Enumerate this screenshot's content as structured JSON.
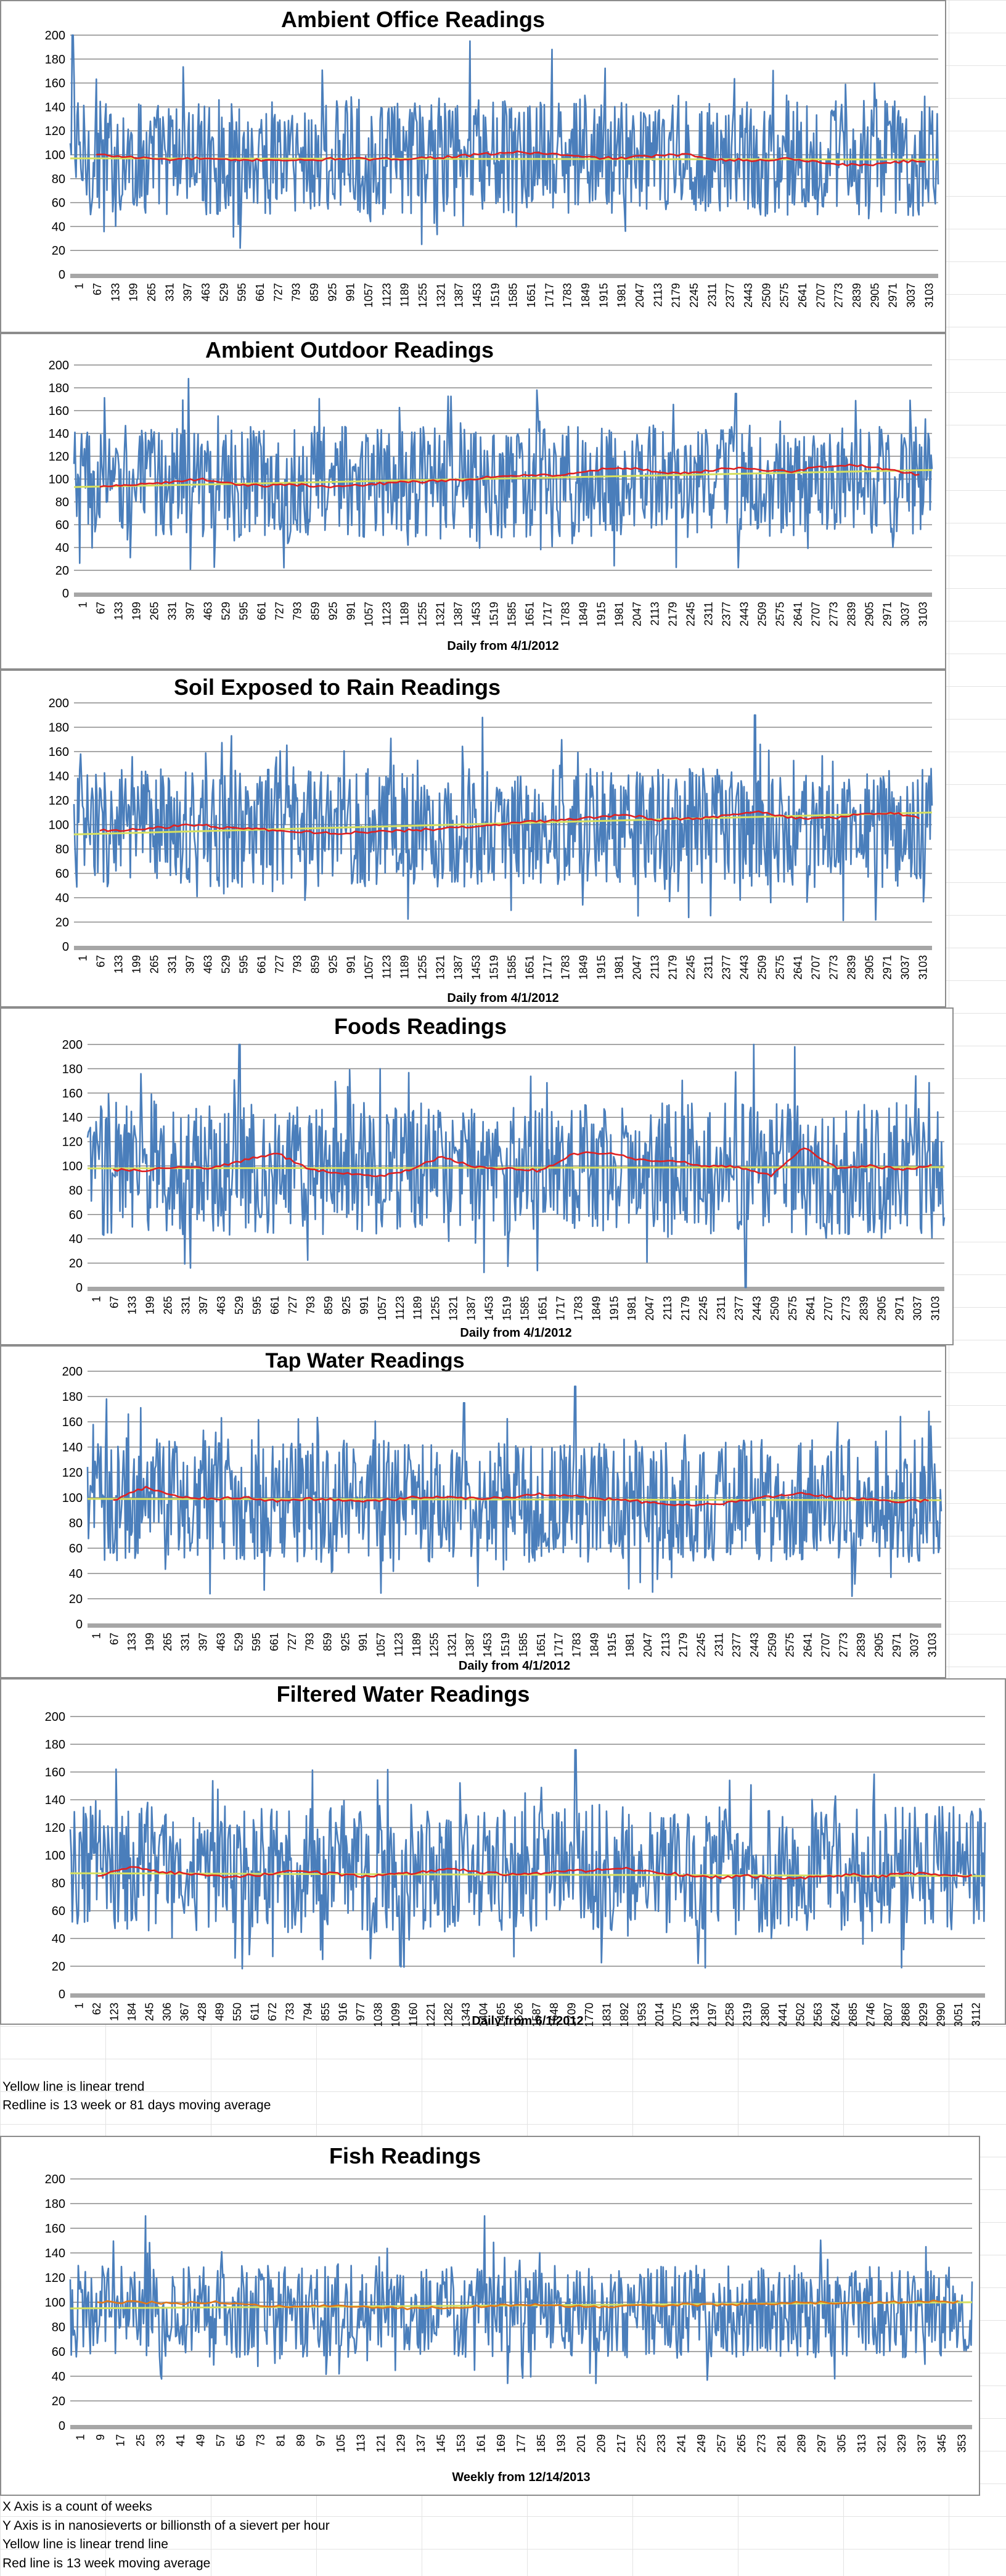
{
  "chart_data": [
    {
      "type": "line",
      "title": "Ambient Office Readings",
      "xlabel": "",
      "ylabel": "",
      "ylim": [
        0,
        200
      ],
      "yticks": [
        0,
        20,
        40,
        60,
        80,
        100,
        120,
        140,
        160,
        180,
        200
      ],
      "xticks": [
        "1",
        "67",
        "133",
        "199",
        "265",
        "331",
        "397",
        "463",
        "529",
        "595",
        "661",
        "727",
        "793",
        "859",
        "925",
        "991",
        "1057",
        "1123",
        "1189",
        "1255",
        "1321",
        "1387",
        "1453",
        "1519",
        "1585",
        "1651",
        "1717",
        "1783",
        "1849",
        "1915",
        "1981",
        "2047",
        "2113",
        "2179",
        "2245",
        "2311",
        "2377",
        "2443",
        "2509",
        "2575",
        "2641",
        "2707",
        "2773",
        "2839",
        "2905",
        "2971",
        "3037",
        "3103"
      ],
      "grid": true,
      "series": [
        {
          "role": "raw",
          "color": "#4a7ebb",
          "range": [
            55,
            140
          ],
          "spikes": [
            [
              10,
              200
            ],
            [
              1450,
              195
            ],
            [
              1750,
              188
            ],
            [
              1620,
              40
            ]
          ]
        },
        {
          "role": "moving_average",
          "color": "#e02020",
          "values": [
            100,
            98,
            96,
            97,
            95,
            96,
            95,
            97,
            96,
            97,
            98,
            100,
            102,
            101,
            98,
            97,
            99,
            100,
            96,
            95,
            97,
            93,
            91,
            94,
            95
          ]
        },
        {
          "role": "linear_trend",
          "color": "#d6e060",
          "values": [
            97,
            96
          ]
        }
      ],
      "xlim": [
        1,
        3150
      ]
    },
    {
      "type": "line",
      "title": "Ambient Outdoor Readings",
      "xlabel": "Daily from 4/1/2012",
      "ylabel": "",
      "ylim": [
        0,
        200
      ],
      "yticks": [
        0,
        20,
        40,
        60,
        80,
        100,
        120,
        140,
        160,
        180,
        200
      ],
      "xticks": [
        "1",
        "67",
        "133",
        "199",
        "265",
        "331",
        "397",
        "463",
        "529",
        "595",
        "661",
        "727",
        "793",
        "859",
        "925",
        "991",
        "1057",
        "1123",
        "1189",
        "1255",
        "1321",
        "1387",
        "1453",
        "1519",
        "1585",
        "1651",
        "1717",
        "1783",
        "1849",
        "1915",
        "1981",
        "2047",
        "2113",
        "2179",
        "2245",
        "2311",
        "2377",
        "2443",
        "2509",
        "2575",
        "2641",
        "2707",
        "2773",
        "2839",
        "2905",
        "2971",
        "3037",
        "3103"
      ],
      "grid": true,
      "series": [
        {
          "role": "raw",
          "color": "#4a7ebb",
          "range": [
            55,
            140
          ],
          "spikes": [
            [
              420,
              188
            ],
            [
              1700,
              178
            ],
            [
              2430,
              175
            ]
          ]
        },
        {
          "role": "moving_average",
          "color": "#e02020",
          "values": [
            93,
            95,
            97,
            100,
            96,
            94,
            95,
            93,
            95,
            97,
            98,
            99,
            102,
            104,
            103,
            108,
            110,
            106,
            105,
            110,
            108,
            107,
            111,
            112,
            108,
            103
          ]
        },
        {
          "role": "linear_trend",
          "color": "#d6e060",
          "values": [
            93,
            108
          ]
        }
      ],
      "xlim": [
        1,
        3150
      ]
    },
    {
      "type": "line",
      "title": "Soil Exposed to Rain Readings",
      "xlabel": "Daily from 4/1/2012",
      "ylabel": "",
      "ylim": [
        0,
        200
      ],
      "yticks": [
        0,
        20,
        40,
        60,
        80,
        100,
        120,
        140,
        160,
        180,
        200
      ],
      "xticks": [
        "1",
        "67",
        "133",
        "199",
        "265",
        "331",
        "397",
        "463",
        "529",
        "595",
        "661",
        "727",
        "793",
        "859",
        "925",
        "991",
        "1057",
        "1123",
        "1189",
        "1255",
        "1321",
        "1387",
        "1453",
        "1519",
        "1585",
        "1651",
        "1717",
        "1783",
        "1849",
        "1915",
        "1981",
        "2047",
        "2113",
        "2179",
        "2245",
        "2311",
        "2377",
        "2443",
        "2509",
        "2575",
        "2641",
        "2707",
        "2773",
        "2839",
        "2905",
        "2971",
        "3037",
        "3103"
      ],
      "grid": true,
      "series": [
        {
          "role": "raw",
          "color": "#4a7ebb",
          "range": [
            55,
            140
          ],
          "spikes": [
            [
              1500,
              188
            ],
            [
              2500,
              190
            ],
            [
              850,
              38
            ]
          ]
        },
        {
          "role": "moving_average",
          "color": "#e02020",
          "values": [
            95,
            96,
            98,
            100,
            97,
            96,
            94,
            93,
            94,
            95,
            96,
            98,
            100,
            102,
            104,
            106,
            108,
            104,
            105,
            107,
            110,
            106,
            105,
            108,
            110,
            105
          ]
        },
        {
          "role": "linear_trend",
          "color": "#d6e060",
          "values": [
            92,
            110
          ]
        }
      ],
      "xlim": [
        1,
        3150
      ]
    },
    {
      "type": "line",
      "title": "Foods Readings",
      "xlabel": "Daily from 4/1/2012",
      "ylabel": "",
      "ylim": [
        0,
        200
      ],
      "yticks": [
        0,
        20,
        40,
        60,
        80,
        100,
        120,
        140,
        160,
        180,
        200
      ],
      "xticks": [
        "1",
        "67",
        "133",
        "199",
        "265",
        "331",
        "397",
        "463",
        "529",
        "595",
        "661",
        "727",
        "793",
        "859",
        "925",
        "991",
        "1057",
        "1123",
        "1189",
        "1255",
        "1321",
        "1387",
        "1453",
        "1519",
        "1585",
        "1651",
        "1717",
        "1783",
        "1849",
        "1915",
        "1981",
        "2047",
        "2113",
        "2179",
        "2245",
        "2311",
        "2377",
        "2443",
        "2509",
        "2575",
        "2641",
        "2707",
        "2773",
        "2839",
        "2905",
        "2971",
        "3037",
        "3103"
      ],
      "grid": true,
      "series": [
        {
          "role": "raw",
          "color": "#4a7ebb",
          "range": [
            50,
            145
          ],
          "spikes": [
            [
              560,
              200
            ],
            [
              2450,
              200
            ],
            [
              2600,
              198
            ],
            [
              2420,
              0
            ]
          ]
        },
        {
          "role": "moving_average",
          "color": "#e02020",
          "values": [
            97,
            96,
            100,
            98,
            105,
            110,
            97,
            94,
            91,
            97,
            108,
            99,
            98,
            96,
            110,
            111,
            105,
            104,
            100,
            99,
            92,
            115,
            98,
            100,
            97,
            101
          ]
        },
        {
          "role": "linear_trend",
          "color": "#d6e060",
          "values": [
            98,
            99
          ]
        }
      ],
      "xlim": [
        1,
        3150
      ]
    },
    {
      "type": "line",
      "title": "Tap Water Readings",
      "xlabel": "Daily from 4/1/2012",
      "ylabel": "",
      "ylim": [
        0,
        200
      ],
      "yticks": [
        0,
        20,
        40,
        60,
        80,
        100,
        120,
        140,
        160,
        180,
        200
      ],
      "xticks": [
        "1",
        "67",
        "133",
        "199",
        "265",
        "331",
        "397",
        "463",
        "529",
        "595",
        "661",
        "727",
        "793",
        "859",
        "925",
        "991",
        "1057",
        "1123",
        "1189",
        "1255",
        "1321",
        "1387",
        "1453",
        "1519",
        "1585",
        "1651",
        "1717",
        "1783",
        "1849",
        "1915",
        "1981",
        "2047",
        "2113",
        "2179",
        "2245",
        "2311",
        "2377",
        "2443",
        "2509",
        "2575",
        "2641",
        "2707",
        "2773",
        "2839",
        "2905",
        "2971",
        "3037",
        "3103"
      ],
      "grid": true,
      "series": [
        {
          "role": "raw",
          "color": "#4a7ebb",
          "range": [
            55,
            140
          ],
          "spikes": [
            [
              1800,
              188
            ],
            [
              1390,
              175
            ],
            [
              70,
              178
            ]
          ]
        },
        {
          "role": "moving_average",
          "color": "#e02020",
          "values": [
            98,
            108,
            101,
            99,
            100,
            97,
            99,
            98,
            97,
            100,
            101,
            99,
            100,
            103,
            101,
            99,
            97,
            95,
            94,
            97,
            101,
            103,
            100,
            99,
            97,
            98
          ]
        },
        {
          "role": "linear_trend",
          "color": "#d6e060",
          "values": [
            99,
            98
          ]
        }
      ],
      "xlim": [
        1,
        3150
      ]
    },
    {
      "type": "line",
      "title": "Filtered Water Readings",
      "xlabel": "Daily from 6/1/2012",
      "ylabel": "",
      "ylim": [
        0,
        200
      ],
      "yticks": [
        0,
        20,
        40,
        60,
        80,
        100,
        120,
        140,
        160,
        180,
        200
      ],
      "xticks": [
        "1",
        "62",
        "123",
        "184",
        "245",
        "306",
        "367",
        "428",
        "489",
        "550",
        "611",
        "672",
        "733",
        "794",
        "855",
        "916",
        "977",
        "1038",
        "1099",
        "1160",
        "1221",
        "1282",
        "1343",
        "1404",
        "1465",
        "1526",
        "1587",
        "1648",
        "1709",
        "1770",
        "1831",
        "1892",
        "1953",
        "2014",
        "2075",
        "2136",
        "2197",
        "2258",
        "2319",
        "2380",
        "2441",
        "2502",
        "2563",
        "2624",
        "2685",
        "2746",
        "2807",
        "2868",
        "2929",
        "2990",
        "3051",
        "3112"
      ],
      "grid": true,
      "series": [
        {
          "role": "raw",
          "color": "#4a7ebb",
          "range": [
            50,
            130
          ],
          "spikes": [
            [
              160,
              162
            ],
            [
              1740,
              176
            ],
            [
              2870,
              32
            ]
          ]
        },
        {
          "role": "moving_average",
          "color": "#e02020",
          "values": [
            85,
            92,
            88,
            86,
            84,
            86,
            89,
            87,
            85,
            86,
            88,
            90,
            87,
            86,
            88,
            89,
            91,
            88,
            86,
            84,
            85,
            83,
            84,
            86,
            85,
            87,
            86,
            85
          ]
        },
        {
          "role": "linear_trend",
          "color": "#d6e060",
          "values": [
            87,
            85
          ]
        }
      ],
      "xlim": [
        1,
        3150
      ]
    },
    {
      "type": "line",
      "title": "Fish Readings",
      "xlabel": "Weekly from 12/14/2013",
      "ylabel": "",
      "ylim": [
        0,
        200
      ],
      "yticks": [
        0,
        20,
        40,
        60,
        80,
        100,
        120,
        140,
        160,
        180,
        200
      ],
      "xticks": [
        "1",
        "9",
        "17",
        "25",
        "33",
        "41",
        "49",
        "57",
        "65",
        "73",
        "81",
        "89",
        "97",
        "105",
        "113",
        "121",
        "129",
        "137",
        "145",
        "153",
        "161",
        "169",
        "177",
        "185",
        "193",
        "201",
        "209",
        "217",
        "225",
        "233",
        "241",
        "249",
        "257",
        "265",
        "273",
        "281",
        "289",
        "297",
        "305",
        "313",
        "321",
        "329",
        "337",
        "345",
        "353"
      ],
      "grid": true,
      "series": [
        {
          "role": "raw",
          "color": "#4a7ebb",
          "range": [
            60,
            125
          ],
          "spikes": [
            [
              31,
              170
            ],
            [
              166,
              170
            ],
            [
              3,
              72
            ]
          ]
        },
        {
          "role": "moving_average",
          "color": "#e07818",
          "values": [
            100,
            100,
            99,
            100,
            98,
            96,
            97,
            96,
            95,
            96,
            97,
            98,
            97,
            96,
            97,
            98,
            98,
            99,
            100,
            99,
            100,
            101,
            100
          ]
        },
        {
          "role": "linear_trend",
          "color": "#d6e060",
          "values": [
            95,
            100
          ]
        }
      ],
      "xlim": [
        1,
        360
      ]
    }
  ],
  "notes": {
    "yellow_line": "Yellow line is linear trend",
    "red_line_daily": "Redline is 13 week or 81 days moving average",
    "x_axis": "X Axis is a count of weeks",
    "y_axis": "Y Axis is in nanosieverts or billionsth of a sievert per hour",
    "yellow_line_weekly": "Yellow line is linear trend line",
    "red_line_weekly": "Red line is 13 week moving average"
  }
}
